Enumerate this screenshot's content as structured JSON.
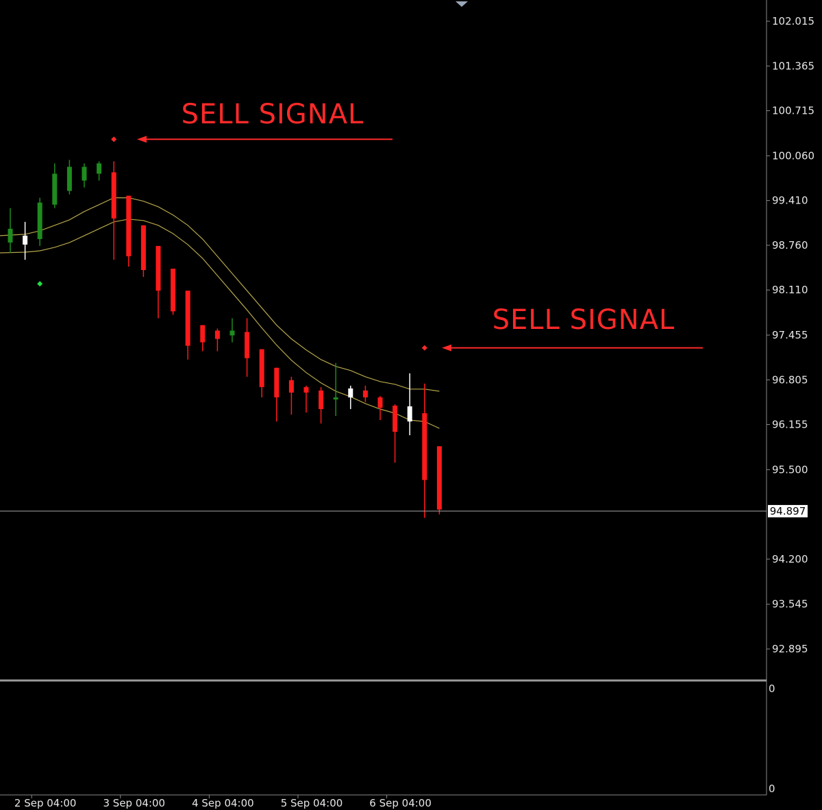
{
  "chart_data": {
    "type": "candlestick",
    "ylim": [
      92.0,
      102.4
    ],
    "y_ticks": [
      "102.015",
      "101.365",
      "100.715",
      "100.060",
      "99.410",
      "98.760",
      "98.110",
      "97.455",
      "96.805",
      "96.155",
      "95.500",
      "94.200",
      "93.545",
      "92.895"
    ],
    "current_price": "94.897",
    "current_price_value": 94.897,
    "x_labels": [
      "2 Sep 04:00",
      "3 Sep 04:00",
      "4 Sep 04:00",
      "5 Sep 04:00",
      "6 Sep 04:00"
    ],
    "x_label_bar_index": [
      2,
      8,
      14,
      20,
      26
    ],
    "colors": {
      "bull": "#1e8c1e",
      "bear": "#ff1a1a",
      "doji": "#ffffff",
      "band": "#b5a64a",
      "annotation": "#ff2a2a",
      "buy_signal": "#22dd44",
      "sell_signal": "#ff2a2a"
    },
    "candles": [
      {
        "o": 98.8,
        "h": 99.3,
        "l": 98.65,
        "c": 99.0,
        "color": "bull"
      },
      {
        "o": 98.9,
        "h": 99.1,
        "l": 98.55,
        "c": 98.77,
        "color": "doji"
      },
      {
        "o": 98.85,
        "h": 99.45,
        "l": 98.75,
        "c": 99.38,
        "color": "bull"
      },
      {
        "o": 99.35,
        "h": 99.95,
        "l": 99.3,
        "c": 99.8,
        "color": "bull"
      },
      {
        "o": 99.55,
        "h": 100.0,
        "l": 99.5,
        "c": 99.9,
        "color": "bull"
      },
      {
        "o": 99.7,
        "h": 99.95,
        "l": 99.6,
        "c": 99.9,
        "color": "bull"
      },
      {
        "o": 99.8,
        "h": 99.98,
        "l": 99.7,
        "c": 99.95,
        "color": "bull"
      },
      {
        "o": 99.82,
        "h": 99.98,
        "l": 98.55,
        "c": 99.15,
        "color": "bear"
      },
      {
        "o": 99.48,
        "h": 99.48,
        "l": 98.45,
        "c": 98.6,
        "color": "bear"
      },
      {
        "o": 99.05,
        "h": 99.05,
        "l": 98.3,
        "c": 98.4,
        "color": "bear"
      },
      {
        "o": 98.75,
        "h": 98.75,
        "l": 97.7,
        "c": 98.1,
        "color": "bear"
      },
      {
        "o": 98.42,
        "h": 98.42,
        "l": 97.75,
        "c": 97.8,
        "color": "bear"
      },
      {
        "o": 98.1,
        "h": 98.1,
        "l": 97.1,
        "c": 97.3,
        "color": "bear"
      },
      {
        "o": 97.6,
        "h": 97.6,
        "l": 97.22,
        "c": 97.35,
        "color": "bear"
      },
      {
        "o": 97.52,
        "h": 97.55,
        "l": 97.22,
        "c": 97.4,
        "color": "bear"
      },
      {
        "o": 97.45,
        "h": 97.7,
        "l": 97.35,
        "c": 97.52,
        "color": "bull"
      },
      {
        "o": 97.5,
        "h": 97.7,
        "l": 96.85,
        "c": 97.12,
        "color": "bear"
      },
      {
        "o": 97.25,
        "h": 97.25,
        "l": 96.55,
        "c": 96.7,
        "color": "bear"
      },
      {
        "o": 96.98,
        "h": 96.98,
        "l": 96.2,
        "c": 96.55,
        "color": "bear"
      },
      {
        "o": 96.8,
        "h": 96.85,
        "l": 96.3,
        "c": 96.62,
        "color": "bear"
      },
      {
        "o": 96.7,
        "h": 96.72,
        "l": 96.33,
        "c": 96.62,
        "color": "bear"
      },
      {
        "o": 96.65,
        "h": 96.7,
        "l": 96.17,
        "c": 96.38,
        "color": "bear"
      },
      {
        "o": 96.55,
        "h": 97.05,
        "l": 96.28,
        "c": 96.52,
        "color": "bull"
      },
      {
        "o": 96.55,
        "h": 96.72,
        "l": 96.38,
        "c": 96.68,
        "color": "doji"
      },
      {
        "o": 96.65,
        "h": 96.72,
        "l": 96.48,
        "c": 96.55,
        "color": "bear"
      },
      {
        "o": 96.55,
        "h": 96.57,
        "l": 96.22,
        "c": 96.4,
        "color": "bear"
      },
      {
        "o": 96.43,
        "h": 96.45,
        "l": 95.6,
        "c": 96.05,
        "color": "bear"
      },
      {
        "o": 96.2,
        "h": 96.9,
        "l": 96.0,
        "c": 96.42,
        "color": "doji"
      },
      {
        "o": 96.32,
        "h": 96.75,
        "l": 94.8,
        "c": 95.35,
        "color": "bear"
      },
      {
        "o": 95.84,
        "h": 95.84,
        "l": 94.85,
        "c": 94.92,
        "color": "bear"
      }
    ],
    "upper_band": [
      98.9,
      98.92,
      98.97,
      99.05,
      99.13,
      99.25,
      99.35,
      99.45,
      99.45,
      99.4,
      99.32,
      99.2,
      99.05,
      98.85,
      98.6,
      98.35,
      98.1,
      97.85,
      97.6,
      97.4,
      97.24,
      97.1,
      97.0,
      96.94,
      96.85,
      96.78,
      96.74,
      96.67,
      96.67,
      96.64
    ],
    "lower_band": [
      98.65,
      98.66,
      98.68,
      98.73,
      98.8,
      98.9,
      99.0,
      99.1,
      99.14,
      99.12,
      99.05,
      98.93,
      98.77,
      98.57,
      98.32,
      98.07,
      97.82,
      97.56,
      97.31,
      97.09,
      96.91,
      96.76,
      96.64,
      96.56,
      96.46,
      96.38,
      96.32,
      96.22,
      96.2,
      96.1
    ],
    "signals": [
      {
        "type": "sell",
        "bar": 7,
        "value": 100.3
      },
      {
        "type": "buy",
        "bar": 2,
        "value": 98.2
      },
      {
        "type": "sell",
        "bar": 28,
        "value": 97.27
      }
    ],
    "annotations": [
      {
        "text": "SELL SIGNAL",
        "signal_index": 0
      },
      {
        "text": "SELL SIGNAL",
        "signal_index": 2
      }
    ],
    "subpanel_ticks": [
      "0",
      "0"
    ]
  }
}
